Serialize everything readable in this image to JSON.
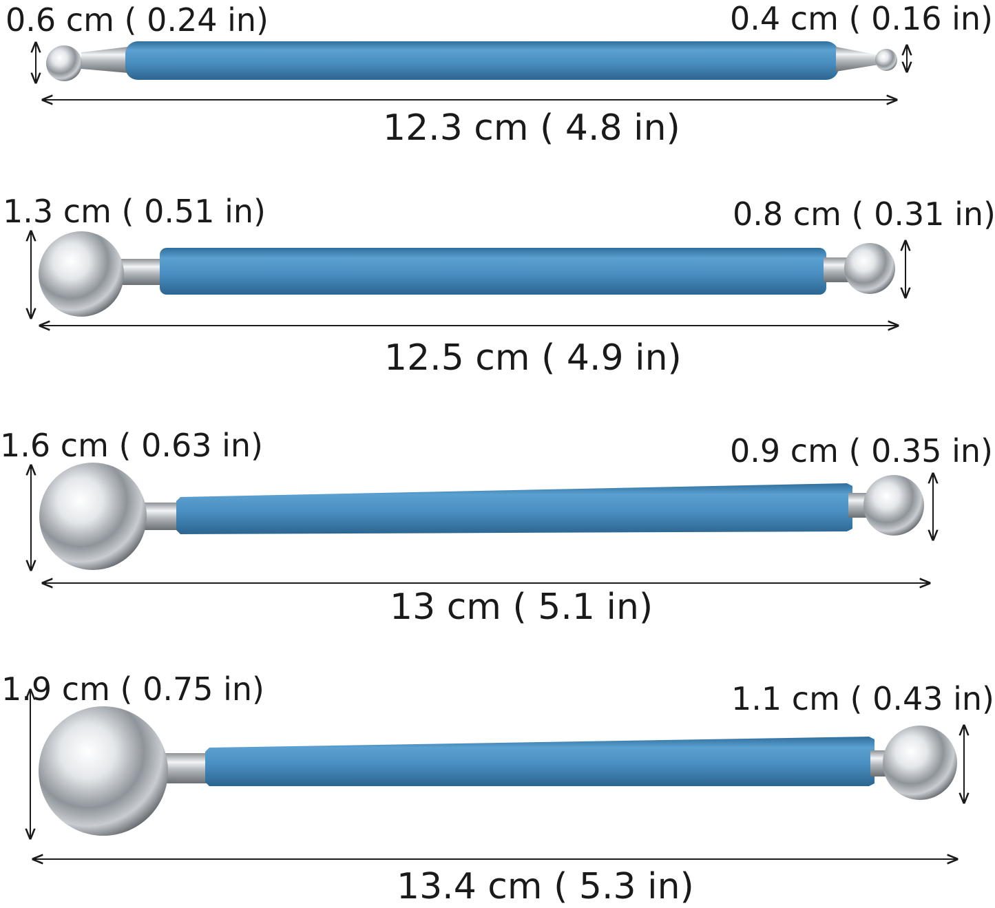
{
  "tools": [
    {
      "left_diameter": "0.6 cm ( 0.24 in)",
      "right_diameter": "0.4 cm ( 0.16 in)",
      "length": "12.3 cm ( 4.8 in)"
    },
    {
      "left_diameter": "1.3 cm ( 0.51 in)",
      "right_diameter": "0.8 cm ( 0.31 in)",
      "length": "12.5 cm ( 4.9 in)"
    },
    {
      "left_diameter": "1.6 cm ( 0.63 in)",
      "right_diameter": "0.9 cm ( 0.35 in)",
      "length": "13 cm ( 5.1 in)"
    },
    {
      "left_diameter": "1.9 cm ( 0.75 in)",
      "right_diameter": "1.1 cm ( 0.43 in)",
      "length": "13.4 cm ( 5.3 in)"
    }
  ],
  "colors": {
    "handle": "#4a8fc1",
    "metal": "#c0c4c8",
    "dimension_lines": "#1a1a1a"
  }
}
